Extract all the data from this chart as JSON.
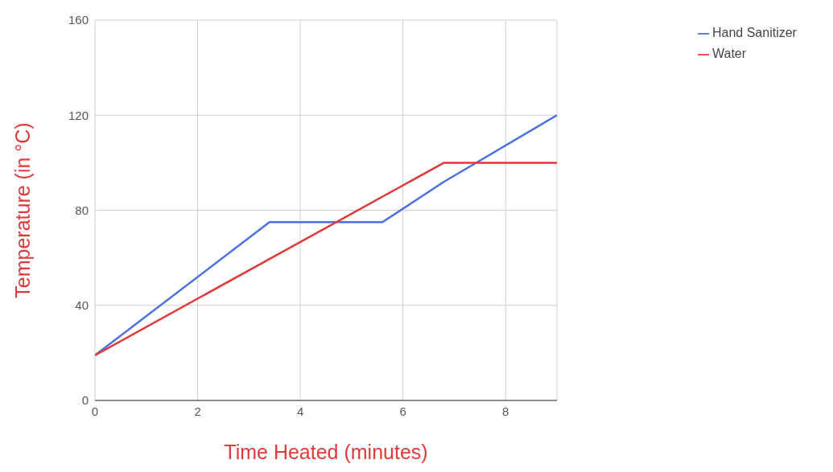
{
  "chart_data": {
    "type": "line",
    "xlabel": "Time Heated (minutes)",
    "ylabel": "Temperature (in °C)",
    "xlim": [
      0,
      9
    ],
    "xticks": [
      0,
      2,
      4,
      6,
      8
    ],
    "ylim": [
      0,
      160
    ],
    "yticks": [
      0,
      40,
      80,
      120,
      160
    ],
    "grid": true,
    "legend": "top right",
    "marker": "none",
    "line_style": "solid",
    "series": [
      {
        "name": "Hand Sanitizer",
        "color": "#4a6fe0",
        "x": [
          0,
          3.4,
          5.6,
          6.8,
          9
        ],
        "values": [
          19,
          75,
          75,
          92,
          120
        ]
      },
      {
        "name": "Water",
        "color": "#e0393a",
        "x": [
          0,
          6.8,
          9
        ],
        "values": [
          19,
          100,
          100
        ]
      }
    ]
  }
}
